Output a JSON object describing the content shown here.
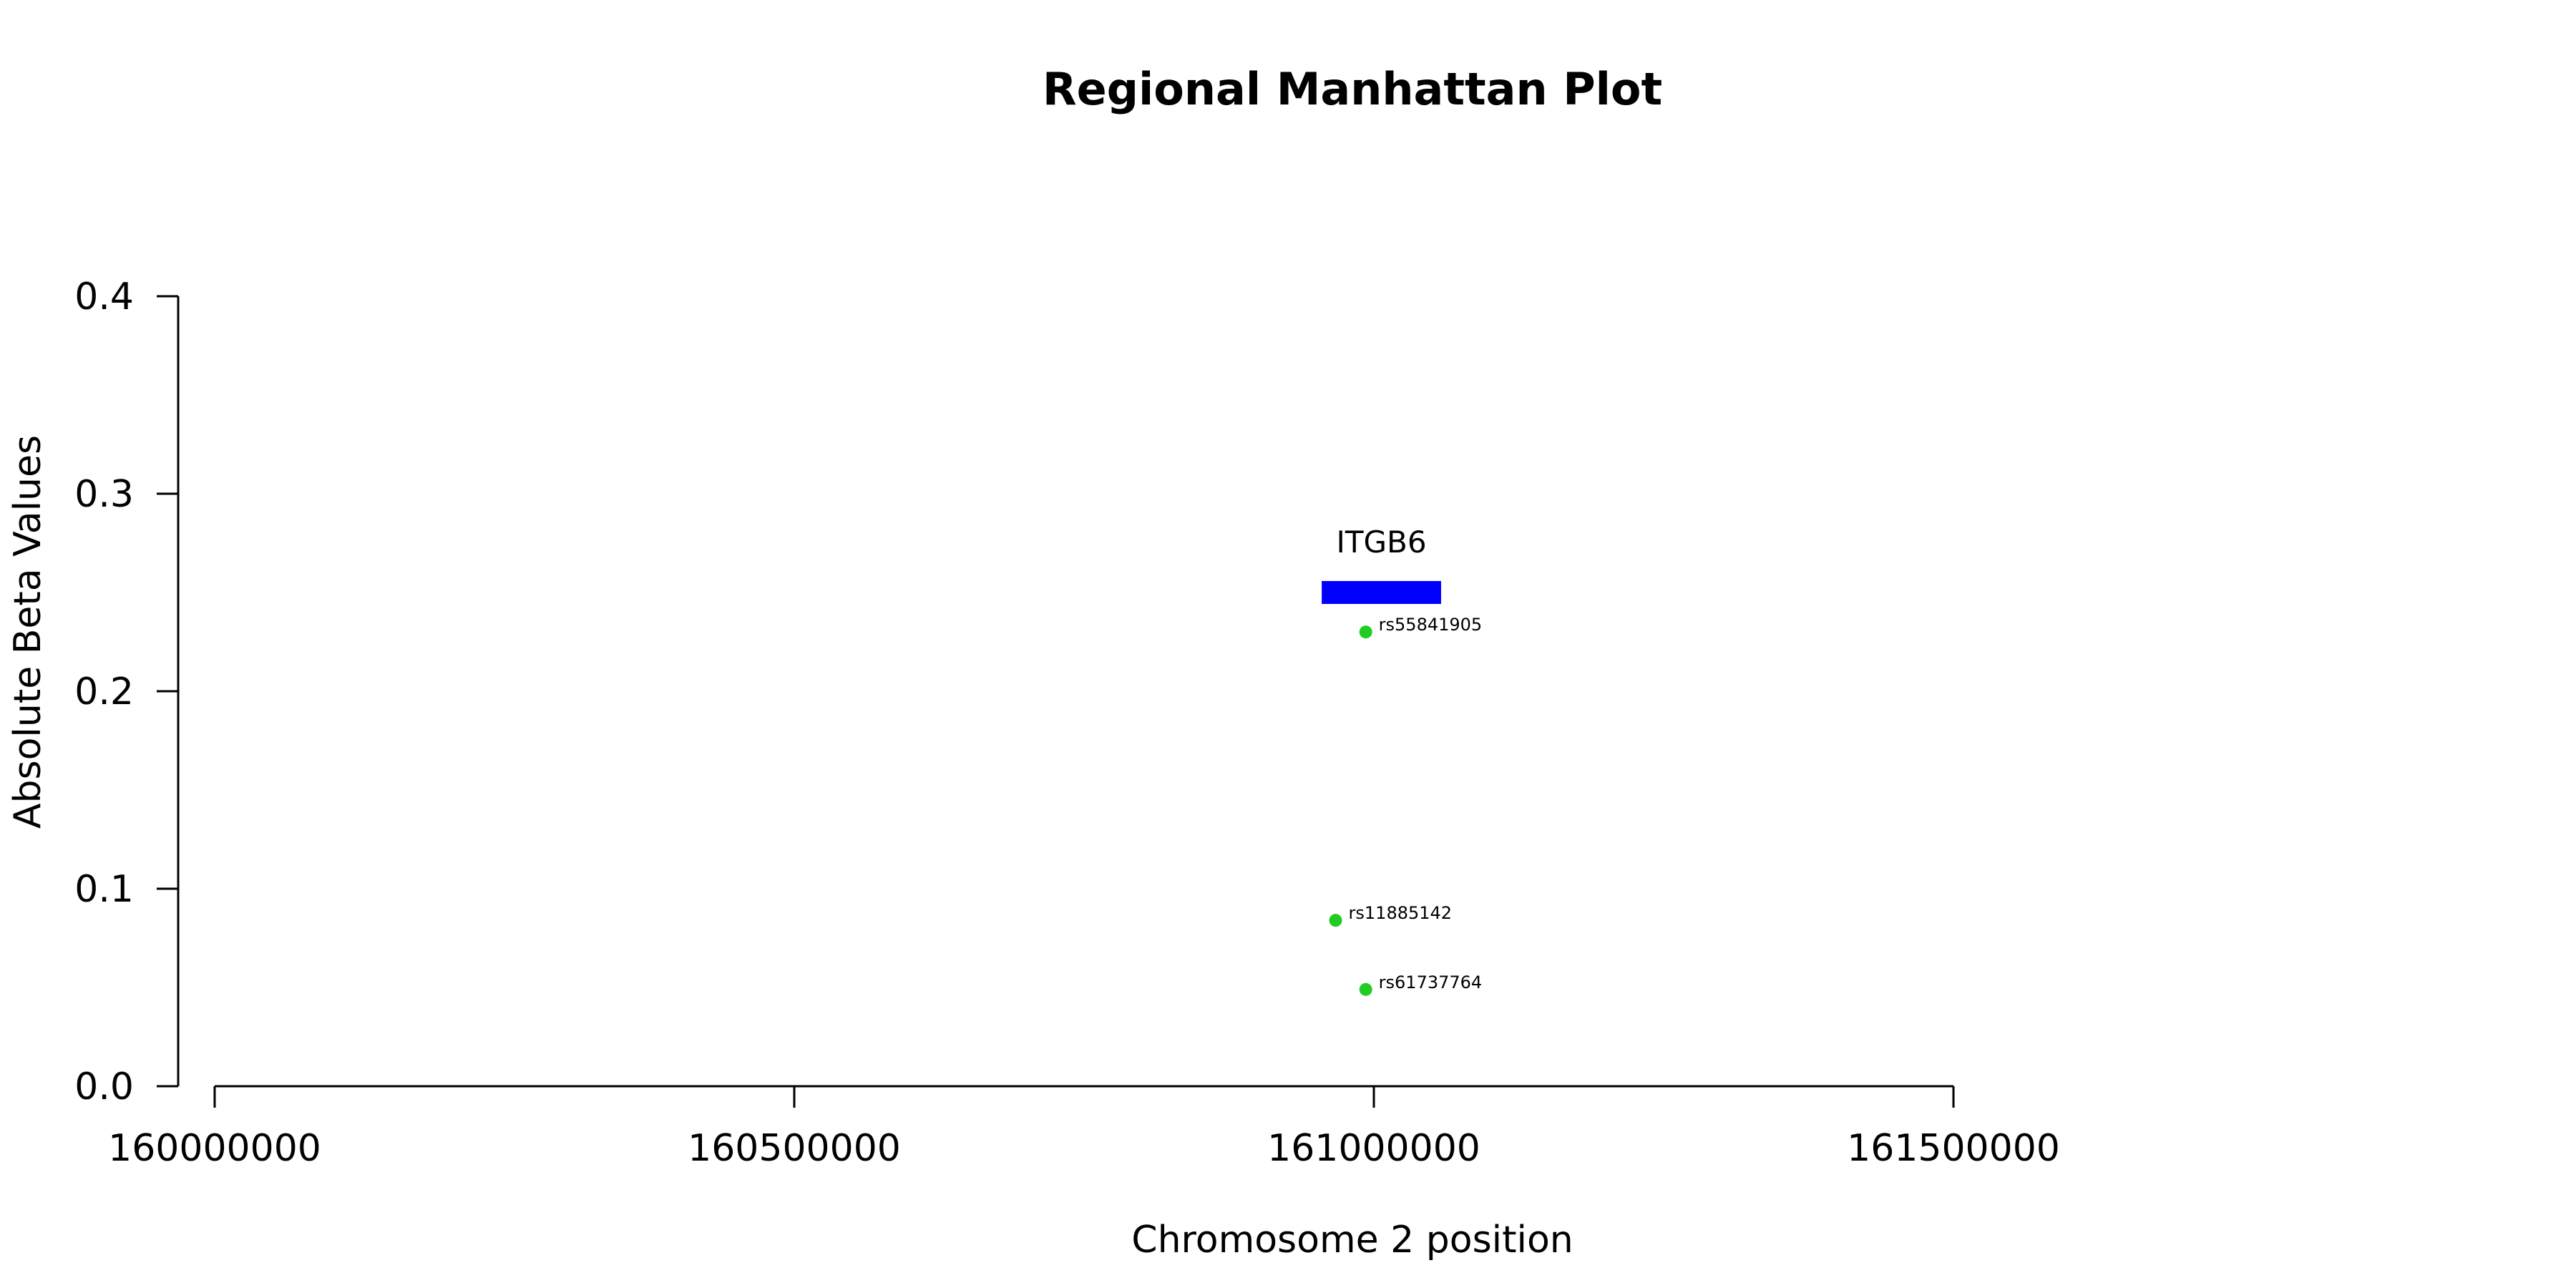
{
  "chart_data": {
    "type": "scatter",
    "title": "Regional Manhattan Plot",
    "xlabel": "Chromosome 2 position",
    "ylabel": "Absolute Beta Values",
    "xlim": [
      160000000,
      161500000
    ],
    "ylim": [
      0,
      0.4
    ],
    "x_ticks": [
      160000000,
      160500000,
      161000000,
      161500000
    ],
    "y_ticks": [
      0.0,
      0.1,
      0.2,
      0.3,
      0.4
    ],
    "y_tick_labels": [
      "0.0",
      "0.1",
      "0.2",
      "0.3",
      "0.4"
    ],
    "grid": false,
    "point_color": "#22cc22",
    "points": [
      {
        "label": "rs55841905",
        "x": 160993000,
        "y": 0.23
      },
      {
        "label": "rs11885142",
        "x": 160967000,
        "y": 0.084
      },
      {
        "label": "rs61737764",
        "x": 160993000,
        "y": 0.049
      }
    ],
    "genes": [
      {
        "name": "ITGB6",
        "start": 160955000,
        "end": 161058000,
        "y": 0.25,
        "color": "#0000ff"
      }
    ]
  }
}
